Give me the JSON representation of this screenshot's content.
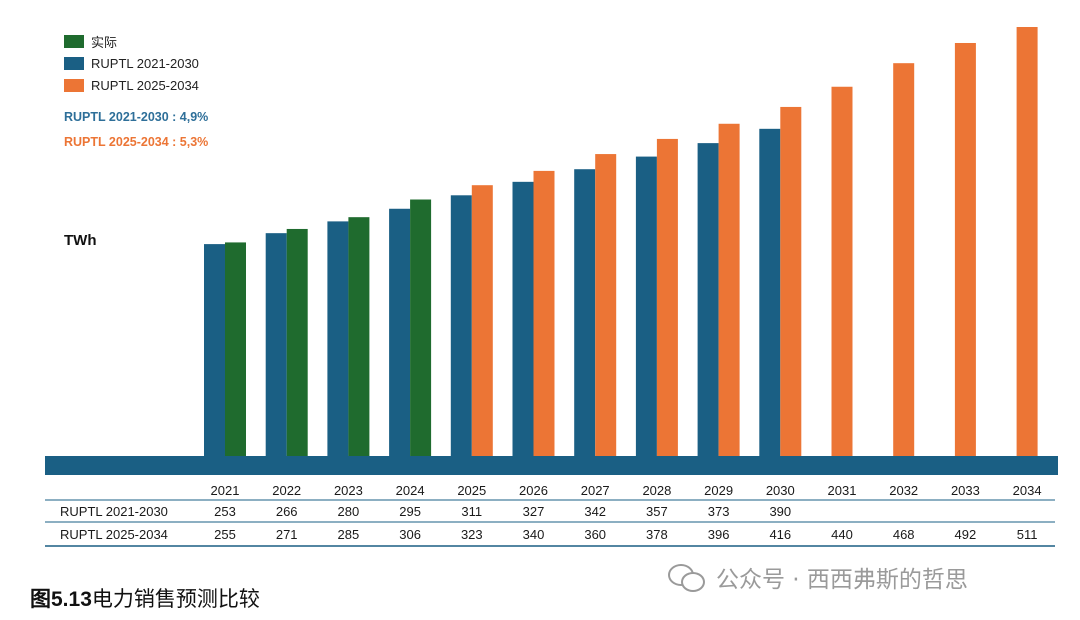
{
  "legend": {
    "actual": "实际",
    "plan_old": "RUPTL 2021-2030",
    "plan_new": "RUPTL 2025-2034"
  },
  "cagr": {
    "plan_old": "RUPTL 2021-2030 : 4,9%",
    "plan_new": "RUPTL 2025-2034 : 5,3%"
  },
  "unit_label": "TWh",
  "caption": {
    "fig_no": "图5.13",
    "title": "电力销售预测比较"
  },
  "watermark": "公众号 · 西西弗斯的哲思",
  "colors": {
    "actual": "#1f6b2e",
    "plan_old": "#1a5f84",
    "plan_new": "#ec7535",
    "cagr_old": "#2e6f99",
    "cagr_new": "#ec7535",
    "table_line": "#1a5f84"
  },
  "chart_data": {
    "type": "bar",
    "categories": [
      "2021",
      "2022",
      "2023",
      "2024",
      "2025",
      "2026",
      "2027",
      "2028",
      "2029",
      "2030",
      "2031",
      "2032",
      "2033",
      "2034"
    ],
    "series": [
      {
        "name": "RUPTL 2021-2030",
        "values": [
          253,
          266,
          280,
          295,
          311,
          327,
          342,
          357,
          373,
          390,
          null,
          null,
          null,
          null
        ]
      },
      {
        "name": "RUPTL 2025-2034",
        "values": [
          255,
          271,
          285,
          306,
          323,
          340,
          360,
          378,
          396,
          416,
          440,
          468,
          492,
          511
        ]
      }
    ],
    "actual_years": [
      "2021",
      "2022",
      "2023",
      "2024"
    ],
    "ylabel": "TWh",
    "ylim": [
      0,
      511
    ],
    "grid": false,
    "legend": "top-left",
    "table_rows": [
      {
        "label": "RUPTL 2021-2030",
        "values": [
          "253",
          "266",
          "280",
          "295",
          "311",
          "327",
          "342",
          "357",
          "373",
          "390",
          "",
          "",
          "",
          ""
        ]
      },
      {
        "label": "RUPTL 2025-2034",
        "values": [
          "255",
          "271",
          "285",
          "306",
          "323",
          "340",
          "360",
          "378",
          "396",
          "416",
          "440",
          "468",
          "492",
          "511"
        ]
      }
    ]
  }
}
